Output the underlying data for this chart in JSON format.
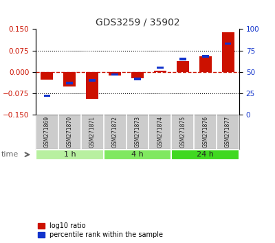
{
  "title": "GDS3259 / 35902",
  "samples": [
    "GSM271869",
    "GSM271870",
    "GSM271871",
    "GSM271872",
    "GSM271873",
    "GSM271874",
    "GSM271875",
    "GSM271876",
    "GSM271877"
  ],
  "log10_ratio": [
    -0.027,
    -0.052,
    -0.095,
    -0.012,
    -0.022,
    0.005,
    0.038,
    0.055,
    0.138
  ],
  "percentile_rank": [
    22,
    37,
    40,
    47,
    42,
    55,
    65,
    68,
    83
  ],
  "groups": [
    {
      "label": "1 h",
      "start": 0,
      "end": 3,
      "color": "#b8f0a0"
    },
    {
      "label": "4 h",
      "start": 3,
      "end": 6,
      "color": "#80e860"
    },
    {
      "label": "24 h",
      "start": 6,
      "end": 9,
      "color": "#40d820"
    }
  ],
  "ylim_left": [
    -0.15,
    0.15
  ],
  "ylim_right": [
    0,
    100
  ],
  "yticks_left": [
    -0.15,
    -0.075,
    0,
    0.075,
    0.15
  ],
  "yticks_right": [
    0,
    25,
    50,
    75,
    100
  ],
  "bar_color_red": "#cc1100",
  "bar_color_blue": "#1133cc",
  "dashed_line_color": "#cc1100",
  "grid_color": "#000000",
  "bar_width": 0.55,
  "blue_bar_width": 0.3,
  "legend_red_label": "log10 ratio",
  "legend_blue_label": "percentile rank within the sample",
  "time_label": "time",
  "background_color": "#ffffff",
  "plot_bg_color": "#ffffff",
  "tick_label_color_left": "#cc1100",
  "tick_label_color_right": "#1133cc",
  "label_bg_color": "#cccccc",
  "time_bg_color": "#dddddd"
}
